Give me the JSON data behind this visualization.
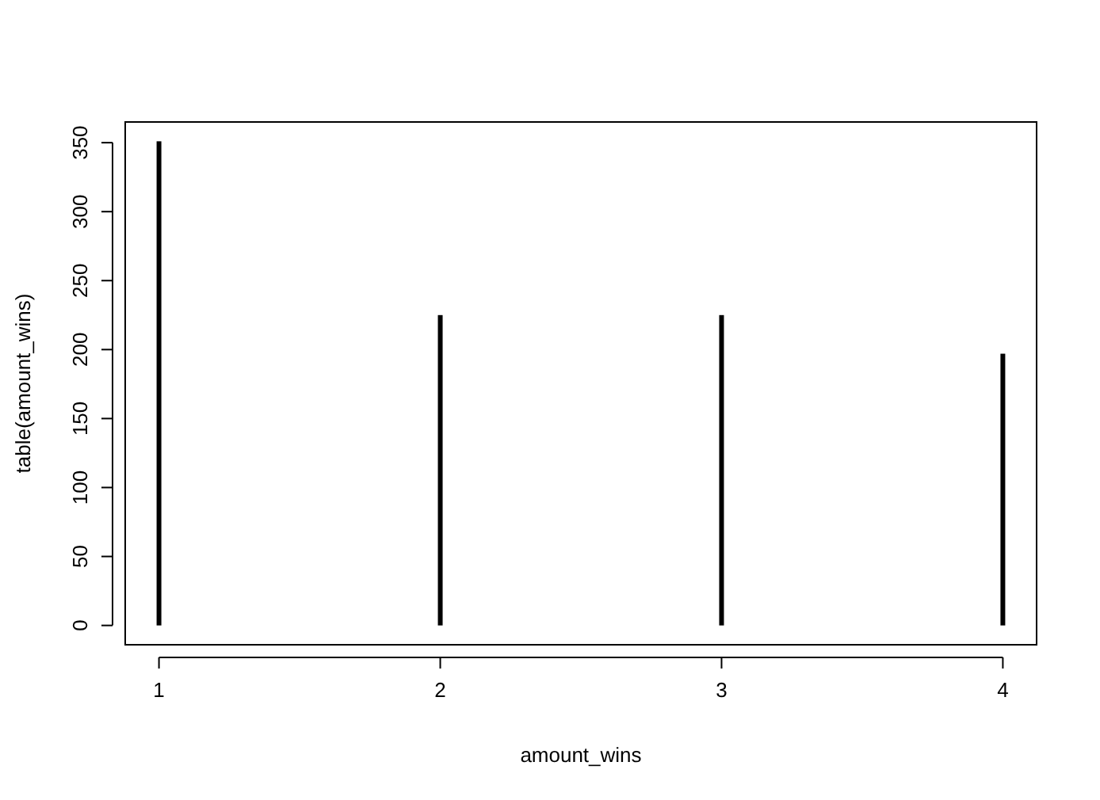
{
  "chart_data": {
    "type": "bar",
    "xlabel": "amount_wins",
    "ylabel": "table(amount_wins)",
    "categories": [
      "1",
      "2",
      "3",
      "4"
    ],
    "values": [
      351,
      225,
      225,
      197
    ],
    "color": "#000000",
    "ylim": [
      -14,
      365
    ],
    "yticks": [
      0,
      50,
      100,
      150,
      200,
      250,
      300,
      350
    ]
  }
}
